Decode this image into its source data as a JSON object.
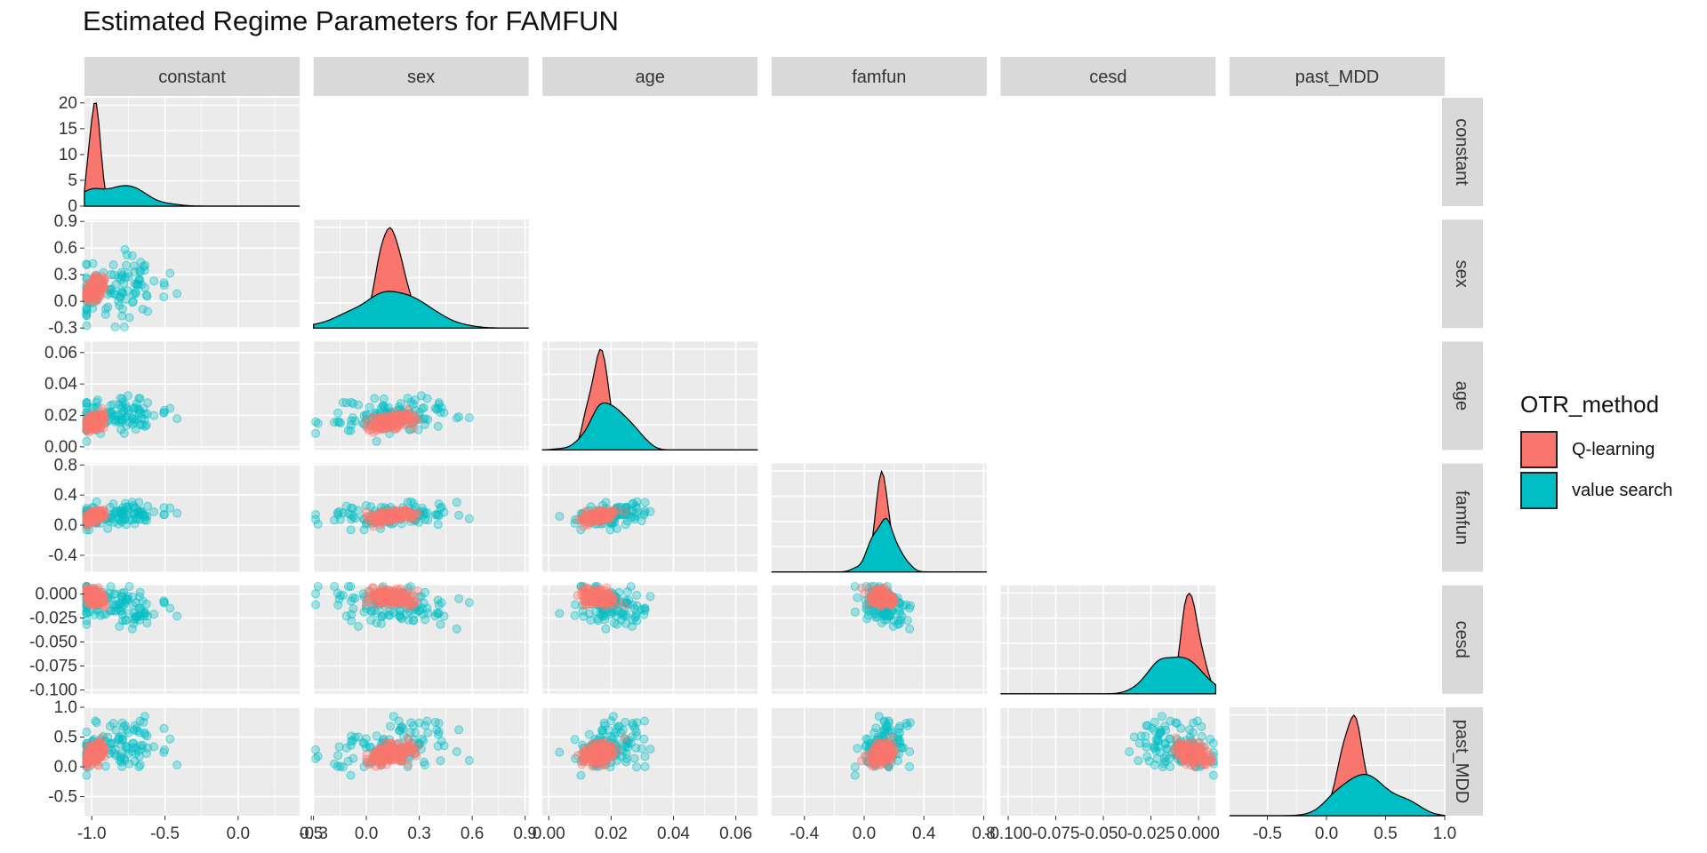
{
  "chart_data": {
    "type": "scatter",
    "title": "Estimated Regime Parameters for FAMFUN",
    "variables": [
      "constant",
      "sex",
      "age",
      "famfun",
      "cesd",
      "past_MDD"
    ],
    "axes": {
      "constant": {
        "range": [
          -1.05,
          0.42
        ],
        "ticks": [
          -1.0,
          -0.5,
          0.0,
          0.5
        ],
        "tick_labels": [
          "-1.0",
          "-0.5",
          "0.0",
          "0.5"
        ]
      },
      "sex": {
        "range": [
          -0.3,
          0.92
        ],
        "ticks": [
          -0.3,
          0.0,
          0.3,
          0.6,
          0.9
        ],
        "tick_labels": [
          "-0.3",
          "0.0",
          "0.3",
          "0.6",
          "0.9"
        ]
      },
      "age": {
        "range": [
          -0.002,
          0.067
        ],
        "ticks": [
          0.0,
          0.02,
          0.04,
          0.06
        ],
        "tick_labels": [
          "0.00",
          "0.02",
          "0.04",
          "0.06"
        ]
      },
      "famfun": {
        "range": [
          -0.62,
          0.82
        ],
        "ticks": [
          -0.4,
          0.0,
          0.4,
          0.8
        ],
        "tick_labels": [
          "-0.4",
          "0.0",
          "0.4",
          "0.8"
        ]
      },
      "cesd": {
        "range": [
          -0.104,
          0.009
        ],
        "ticks": [
          -0.1,
          -0.075,
          -0.05,
          -0.025,
          0.0
        ],
        "tick_labels": [
          "-0.100",
          "-0.075",
          "-0.050",
          "-0.025",
          "0.000"
        ]
      },
      "past_MDD": {
        "range": [
          -0.82,
          1.0
        ],
        "ticks": [
          -0.5,
          0.0,
          0.5,
          1.0
        ],
        "tick_labels": [
          "-0.5",
          "0.0",
          "0.5",
          "1.0"
        ]
      }
    },
    "density_panel": {
      "constant": {
        "range": [
          0,
          21
        ],
        "ticks": [
          0,
          5,
          10,
          15,
          20
        ],
        "tick_labels": [
          "0",
          "5",
          "10",
          "15",
          "20"
        ]
      }
    },
    "groups": [
      {
        "name": "Q-learning",
        "color": "#F8766D",
        "mean": [
          -0.98,
          0.14,
          0.016,
          0.12,
          -0.004,
          0.22
        ],
        "sd": [
          0.03,
          0.06,
          0.003,
          0.04,
          0.004,
          0.09
        ]
      },
      {
        "name": "value search",
        "color": "#00BFC4",
        "mean": [
          -0.85,
          0.15,
          0.019,
          0.12,
          -0.012,
          0.35
        ],
        "sd": [
          0.2,
          0.2,
          0.006,
          0.08,
          0.012,
          0.24
        ]
      }
    ],
    "legend": {
      "title": "OTR_method",
      "position": "right"
    },
    "grid": true
  }
}
